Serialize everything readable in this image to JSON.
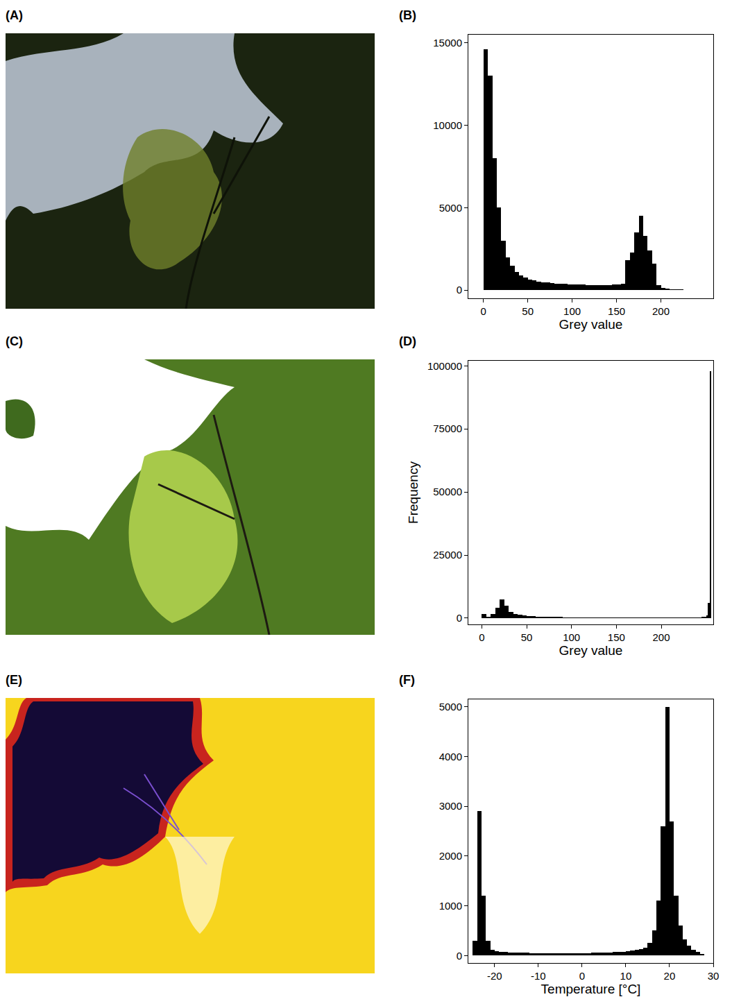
{
  "images": [
    {
      "label": "(A)"
    },
    {
      "label": "(C)"
    },
    {
      "label": "(E)"
    }
  ],
  "chart_data": [
    {
      "type": "histogram",
      "label": "(B)",
      "x_label": "Grey value",
      "color": "#000000",
      "grid": false,
      "bins": [
        0,
        5,
        10,
        15,
        20,
        25,
        30,
        35,
        40,
        45,
        50,
        55,
        60,
        65,
        70,
        75,
        80,
        85,
        90,
        95,
        100,
        105,
        110,
        115,
        120,
        125,
        130,
        135,
        140,
        145,
        150,
        155,
        160,
        165,
        170,
        175,
        180,
        185,
        190,
        195,
        200,
        205,
        210,
        215,
        220,
        225,
        230,
        235,
        240
      ],
      "counts": [
        14600,
        13000,
        8000,
        5000,
        3000,
        2000,
        1500,
        1100,
        900,
        750,
        650,
        580,
        520,
        480,
        450,
        420,
        400,
        380,
        370,
        360,
        350,
        340,
        330,
        320,
        320,
        310,
        310,
        310,
        320,
        330,
        350,
        400,
        1800,
        2300,
        3500,
        4500,
        3300,
        2400,
        1600,
        300,
        120,
        80,
        50,
        40,
        30,
        20,
        10,
        5
      ],
      "xlim": [
        -17,
        259
      ],
      "xticks": [
        0,
        50,
        100,
        150,
        200
      ],
      "ylim": [
        -500,
        15500
      ],
      "yticks": [
        0,
        5000,
        10000,
        15000
      ]
    },
    {
      "type": "histogram",
      "label": "(D)",
      "x_label": "Grey value",
      "y_label": "Frequency",
      "color": "#000000",
      "grid": false,
      "bins": [
        0,
        5,
        10,
        15,
        20,
        25,
        30,
        35,
        40,
        45,
        50,
        55,
        60,
        65,
        70,
        75,
        80,
        85,
        90,
        95,
        100,
        105,
        110,
        115,
        120,
        125,
        130,
        135,
        140,
        145,
        150,
        155,
        160,
        165,
        170,
        175,
        180,
        185,
        190,
        195,
        200,
        205,
        210,
        215,
        220,
        225,
        230,
        235,
        240,
        245,
        250,
        252,
        254,
        256
      ],
      "counts": [
        1500,
        500,
        1500,
        4000,
        7500,
        5000,
        2500,
        1700,
        1300,
        1000,
        850,
        750,
        650,
        580,
        520,
        480,
        440,
        400,
        380,
        360,
        340,
        320,
        300,
        290,
        280,
        270,
        260,
        250,
        240,
        230,
        220,
        210,
        200,
        200,
        190,
        190,
        180,
        180,
        180,
        190,
        190,
        200,
        200,
        210,
        220,
        230,
        250,
        280,
        320,
        400,
        1000,
        6000,
        98000
      ],
      "xlim": [
        -15,
        258
      ],
      "xticks": [
        0,
        50,
        100,
        150,
        200
      ],
      "ylim": [
        -2500,
        102000
      ],
      "yticks": [
        0,
        25000,
        50000,
        75000,
        100000
      ]
    },
    {
      "type": "histogram",
      "label": "(F)",
      "x_label": "Temperature [°C]",
      "color": "#000000",
      "grid": false,
      "bins": [
        -25,
        -24,
        -23,
        -22,
        -21,
        -20,
        -19,
        -18,
        -17,
        -16,
        -15,
        -14,
        -13,
        -12,
        -11,
        -10,
        -9,
        -8,
        -7,
        -6,
        -5,
        -4,
        -3,
        -2,
        -1,
        0,
        1,
        2,
        3,
        4,
        5,
        6,
        7,
        8,
        9,
        10,
        11,
        12,
        13,
        14,
        15,
        16,
        17,
        18,
        19,
        20,
        21,
        22,
        23,
        24,
        25,
        26,
        27,
        28,
        29
      ],
      "counts": [
        300,
        2900,
        1200,
        300,
        120,
        90,
        80,
        70,
        60,
        60,
        60,
        55,
        55,
        50,
        50,
        50,
        50,
        50,
        50,
        50,
        50,
        50,
        50,
        50,
        50,
        50,
        50,
        55,
        55,
        60,
        60,
        65,
        70,
        75,
        80,
        90,
        100,
        110,
        130,
        160,
        250,
        500,
        1100,
        2600,
        5000,
        2700,
        1200,
        600,
        320,
        200,
        120,
        70,
        35,
        10
      ],
      "xlim": [
        -26,
        30
      ],
      "xticks": [
        -20,
        -10,
        0,
        10,
        20,
        30
      ],
      "ylim": [
        -150,
        5150
      ],
      "yticks": [
        0,
        1000,
        2000,
        3000,
        4000,
        5000
      ]
    }
  ]
}
